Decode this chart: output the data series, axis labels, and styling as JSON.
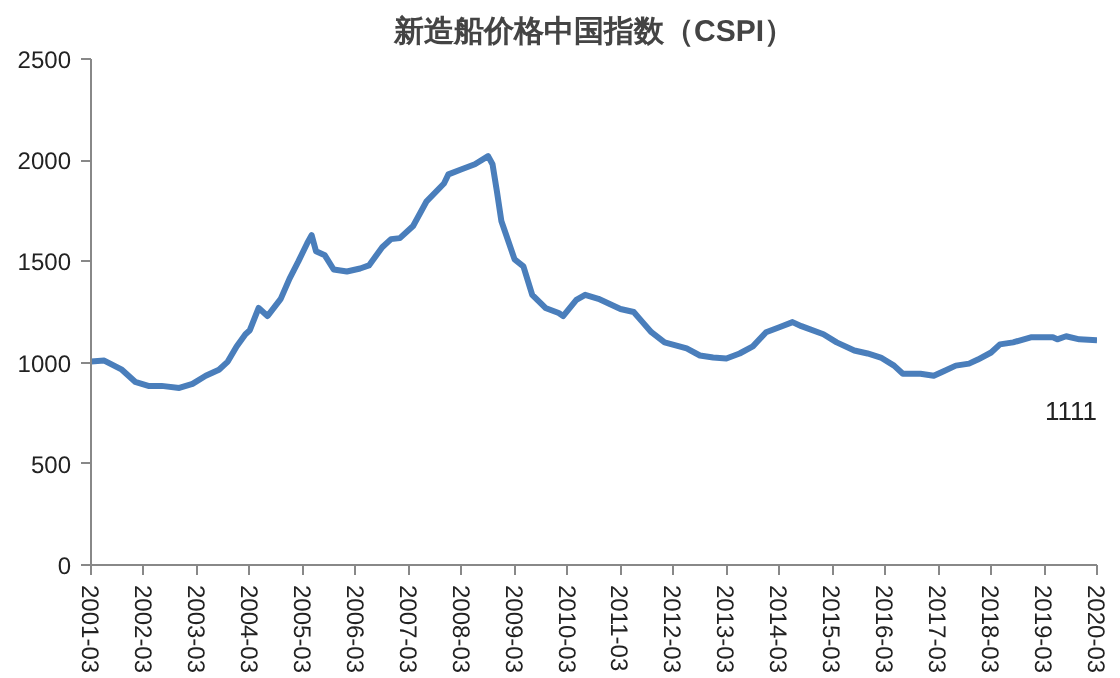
{
  "chart_data": {
    "type": "line",
    "title": "新造船价格中国指数（CSPI）",
    "x": [
      "2001-03",
      "2001-06",
      "2001-10",
      "2002-01",
      "2002-04",
      "2002-07",
      "2002-11",
      "2003-02",
      "2003-05",
      "2003-08",
      "2003-10",
      "2003-12",
      "2004-02",
      "2004-03",
      "2004-05",
      "2004-07",
      "2004-10",
      "2004-12",
      "2005-02",
      "2005-04",
      "2005-05",
      "2005-06",
      "2005-08",
      "2005-10",
      "2006-01",
      "2006-04",
      "2006-06",
      "2006-09",
      "2006-11",
      "2007-01",
      "2007-04",
      "2007-07",
      "2007-11",
      "2007-12",
      "2008-03",
      "2008-06",
      "2008-09",
      "2008-10",
      "2008-11",
      "2008-12",
      "2009-03",
      "2009-05",
      "2009-07",
      "2009-10",
      "2010-01",
      "2010-02",
      "2010-05",
      "2010-07",
      "2010-10",
      "2011-03",
      "2011-06",
      "2011-08",
      "2011-10",
      "2012-01",
      "2012-06",
      "2012-09",
      "2012-12",
      "2013-03",
      "2013-06",
      "2013-09",
      "2013-12",
      "2014-03",
      "2014-06",
      "2014-08",
      "2015-01",
      "2015-04",
      "2015-08",
      "2015-11",
      "2016-02",
      "2016-05",
      "2016-07",
      "2016-11",
      "2017-02",
      "2017-04",
      "2017-07",
      "2017-10",
      "2017-12",
      "2018-03",
      "2018-05",
      "2018-08",
      "2018-12",
      "2019-05",
      "2019-06",
      "2019-08",
      "2019-11",
      "2020-03"
    ],
    "series": [
      {
        "color": "#4a7ebb",
        "values": [
          1005,
          1010,
          965,
          905,
          885,
          885,
          875,
          895,
          935,
          965,
          1005,
          1080,
          1140,
          1160,
          1270,
          1230,
          1315,
          1415,
          1500,
          1590,
          1630,
          1550,
          1530,
          1460,
          1450,
          1465,
          1480,
          1570,
          1610,
          1615,
          1675,
          1795,
          1885,
          1930,
          1955,
          1980,
          2020,
          1980,
          1845,
          1700,
          1510,
          1475,
          1335,
          1270,
          1245,
          1230,
          1310,
          1335,
          1315,
          1265,
          1250,
          1200,
          1150,
          1100,
          1070,
          1035,
          1025,
          1020,
          1045,
          1080,
          1150,
          1175,
          1200,
          1180,
          1140,
          1100,
          1060,
          1045,
          1025,
          985,
          945,
          945,
          935,
          955,
          985,
          995,
          1015,
          1050,
          1090,
          1100,
          1125,
          1125,
          1115,
          1130,
          1115,
          1111
        ]
      }
    ],
    "xlim": [
      "2001-03",
      "2020-03"
    ],
    "xticks": [
      "2001-03",
      "2002-03",
      "2003-03",
      "2004-03",
      "2005-03",
      "2006-03",
      "2007-03",
      "2008-03",
      "2009-03",
      "2010-03",
      "2011-03",
      "2012-03",
      "2013-03",
      "2014-03",
      "2015-03",
      "2016-03",
      "2017-03",
      "2018-03",
      "2019-03",
      "2020-03"
    ],
    "ylim": [
      0,
      2500
    ],
    "yticks": [
      0,
      500,
      1000,
      1500,
      2000,
      2500
    ],
    "annotations": [
      {
        "text": "1111",
        "x": "2020-03",
        "y": 1111
      }
    ],
    "grid": false,
    "marker": "none",
    "line_style": "solid"
  }
}
